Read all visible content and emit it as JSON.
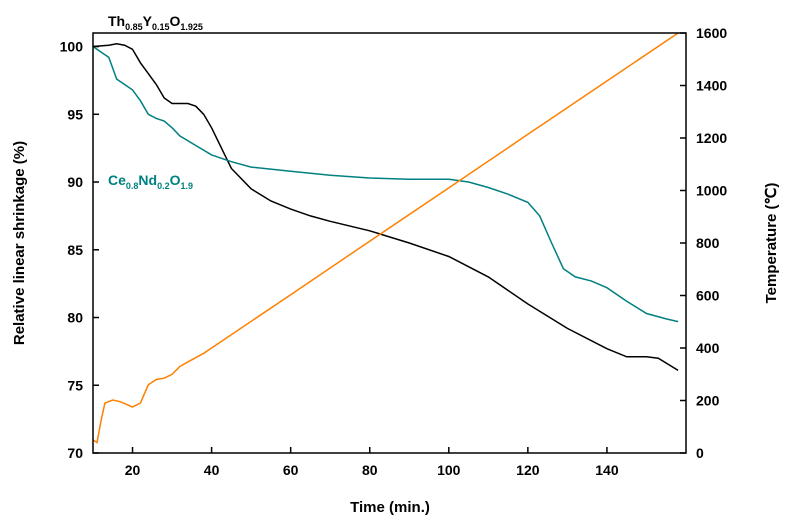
{
  "chart_data": {
    "type": "line",
    "x_label": "Time (min.)",
    "y_label": "Relative linear shrinkage (%)",
    "y2_label": "Temperature (℃)",
    "xlim": [
      10,
      160
    ],
    "xticks": [
      20,
      40,
      60,
      80,
      100,
      120,
      140
    ],
    "ylim": [
      70,
      101
    ],
    "yticks": [
      70,
      75,
      80,
      85,
      90,
      95,
      100
    ],
    "y2lim": [
      0,
      1600
    ],
    "y2ticks": [
      0,
      200,
      400,
      600,
      800,
      1000,
      1200,
      1400,
      1600
    ],
    "annotations": [
      {
        "parts": [
          "Th",
          "0.85",
          "Y",
          "0.15",
          "O",
          "1.925"
        ],
        "color": "#000000"
      },
      {
        "parts": [
          "Ce",
          "0.8",
          "Nd",
          "0.2",
          "O",
          "1.9"
        ],
        "color": "#008080"
      }
    ],
    "series": [
      {
        "color": "#000000",
        "x": [
          10,
          14,
          16,
          18,
          20,
          22,
          24,
          26,
          28,
          30,
          34,
          36,
          38,
          40,
          42,
          45,
          50,
          55,
          60,
          65,
          70,
          80,
          90,
          100,
          110,
          120,
          130,
          140,
          145,
          150,
          153,
          158
        ],
        "values": [
          100,
          100.1,
          100.2,
          100.1,
          99.8,
          98.8,
          98,
          97.2,
          96.2,
          95.8,
          95.8,
          95.6,
          95,
          94,
          92.8,
          91,
          89.5,
          88.6,
          88,
          87.5,
          87.1,
          86.4,
          85.5,
          84.5,
          83,
          81,
          79.2,
          77.7,
          77.1,
          77.1,
          77,
          76.1
        ]
      },
      {
        "color": "#008080",
        "x": [
          10,
          12,
          14,
          16,
          18,
          20,
          22,
          24,
          26,
          28,
          30,
          32,
          36,
          40,
          45,
          50,
          60,
          70,
          80,
          90,
          100,
          105,
          110,
          115,
          120,
          123,
          126,
          129,
          132,
          136,
          140,
          145,
          150,
          155,
          158
        ],
        "values": [
          100,
          99.6,
          99.2,
          97.6,
          97.2,
          96.8,
          96,
          95,
          94.7,
          94.5,
          94,
          93.4,
          92.7,
          92,
          91.5,
          91.1,
          90.8,
          90.5,
          90.3,
          90.2,
          90.2,
          90,
          89.6,
          89.1,
          88.5,
          87.5,
          85.5,
          83.6,
          83,
          82.7,
          82.2,
          81.2,
          80.3,
          79.9,
          79.7
        ]
      },
      {
        "color": "#ff8000",
        "axis": "y2",
        "x": [
          10,
          11,
          12,
          13,
          15,
          17,
          20,
          22,
          24,
          26,
          28,
          30,
          32,
          35,
          38,
          40,
          60,
          80,
          100,
          120,
          140,
          158
        ],
        "values": [
          50,
          40,
          120,
          190,
          202,
          195,
          175,
          190,
          260,
          280,
          285,
          300,
          330,
          355,
          380,
          400,
          603,
          807,
          1010,
          1214,
          1417,
          1600
        ]
      }
    ]
  }
}
